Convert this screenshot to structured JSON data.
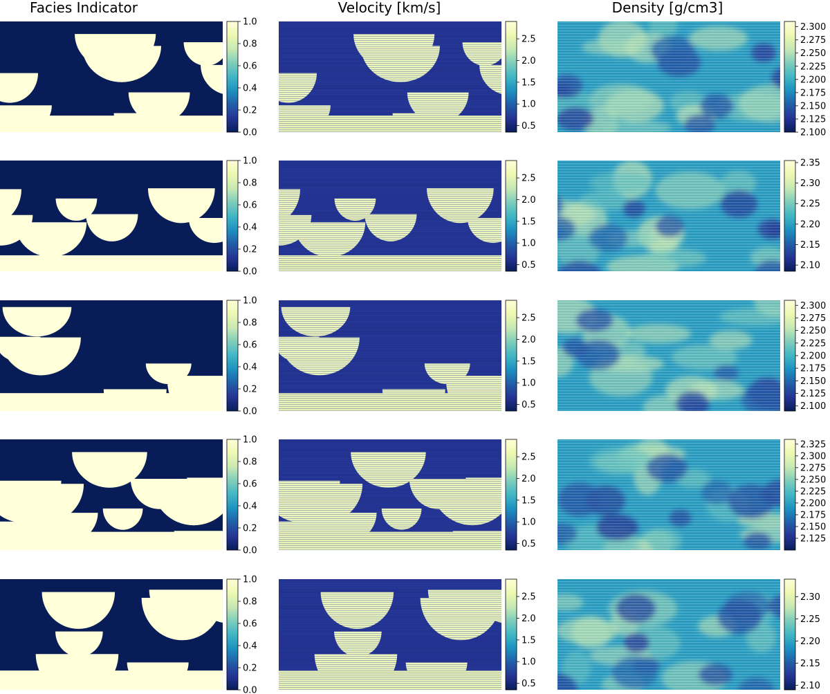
{
  "chart_data": {
    "type": "heatmap",
    "layout": "grid of 5 rows by 3 columns",
    "colormap": "YlGnBu_r",
    "columns": [
      {
        "title": "Facies Indicator",
        "variable": "facies"
      },
      {
        "title": "Velocity [km/s]",
        "variable": "velocity"
      },
      {
        "title": "Density [g/cm3]",
        "variable": "density"
      }
    ],
    "panels": [
      [
        {
          "row": 1,
          "column": "Facies Indicator",
          "vmin": 0.0,
          "vmax": 1.0,
          "ticks": [
            "0.0",
            "0.2",
            "0.4",
            "0.6",
            "0.8",
            "1.0"
          ]
        },
        {
          "row": 1,
          "column": "Velocity [km/s]",
          "vmin": 0.35,
          "vmax": 2.9,
          "ticks": [
            "0.5",
            "1.0",
            "1.5",
            "2.0",
            "2.5"
          ]
        },
        {
          "row": 1,
          "column": "Density [g/cm3]",
          "vmin": 2.1,
          "vmax": 2.31,
          "ticks": [
            "2.100",
            "2.125",
            "2.150",
            "2.175",
            "2.200",
            "2.225",
            "2.250",
            "2.275",
            "2.300"
          ]
        }
      ],
      [
        {
          "row": 2,
          "column": "Facies Indicator",
          "vmin": 0.0,
          "vmax": 1.0,
          "ticks": [
            "0.0",
            "0.2",
            "0.4",
            "0.6",
            "0.8",
            "1.0"
          ]
        },
        {
          "row": 2,
          "column": "Velocity [km/s]",
          "vmin": 0.35,
          "vmax": 2.9,
          "ticks": [
            "0.5",
            "1.0",
            "1.5",
            "2.0",
            "2.5"
          ]
        },
        {
          "row": 2,
          "column": "Density [g/cm3]",
          "vmin": 2.085,
          "vmax": 2.355,
          "ticks": [
            "2.10",
            "2.15",
            "2.20",
            "2.25",
            "2.30",
            "2.35"
          ]
        }
      ],
      [
        {
          "row": 3,
          "column": "Facies Indicator",
          "vmin": 0.0,
          "vmax": 1.0,
          "ticks": [
            "0.0",
            "0.2",
            "0.4",
            "0.6",
            "0.8",
            "1.0"
          ]
        },
        {
          "row": 3,
          "column": "Velocity [km/s]",
          "vmin": 0.35,
          "vmax": 2.9,
          "ticks": [
            "0.5",
            "1.0",
            "1.5",
            "2.0",
            "2.5"
          ]
        },
        {
          "row": 3,
          "column": "Density [g/cm3]",
          "vmin": 2.09,
          "vmax": 2.31,
          "ticks": [
            "2.100",
            "2.125",
            "2.150",
            "2.175",
            "2.200",
            "2.225",
            "2.250",
            "2.275",
            "2.300"
          ]
        }
      ],
      [
        {
          "row": 4,
          "column": "Facies Indicator",
          "vmin": 0.0,
          "vmax": 1.0,
          "ticks": [
            "0.0",
            "0.2",
            "0.4",
            "0.6",
            "0.8",
            "1.0"
          ]
        },
        {
          "row": 4,
          "column": "Velocity [km/s]",
          "vmin": 0.35,
          "vmax": 2.9,
          "ticks": [
            "0.5",
            "1.0",
            "1.5",
            "2.0",
            "2.5"
          ]
        },
        {
          "row": 4,
          "column": "Density [g/cm3]",
          "vmin": 2.1,
          "vmax": 2.335,
          "ticks": [
            "2.125",
            "2.150",
            "2.175",
            "2.200",
            "2.225",
            "2.250",
            "2.275",
            "2.300",
            "2.325"
          ]
        }
      ],
      [
        {
          "row": 5,
          "column": "Facies Indicator",
          "vmin": 0.0,
          "vmax": 1.0,
          "ticks": [
            "0.0",
            "0.2",
            "0.4",
            "0.6",
            "0.8",
            "1.0"
          ]
        },
        {
          "row": 5,
          "column": "Velocity [km/s]",
          "vmin": 0.35,
          "vmax": 2.9,
          "ticks": [
            "0.5",
            "1.0",
            "1.5",
            "2.0",
            "2.5"
          ]
        },
        {
          "row": 5,
          "column": "Density [g/cm3]",
          "vmin": 2.09,
          "vmax": 2.34,
          "ticks": [
            "2.10",
            "2.15",
            "2.20",
            "2.25",
            "2.30"
          ]
        }
      ]
    ],
    "colors": {
      "low": "#081d58",
      "mid": "#41b6c4",
      "high": "#ffffd9"
    },
    "grid": false,
    "axes_visible": false,
    "legend": "colorbar right of each panel"
  }
}
